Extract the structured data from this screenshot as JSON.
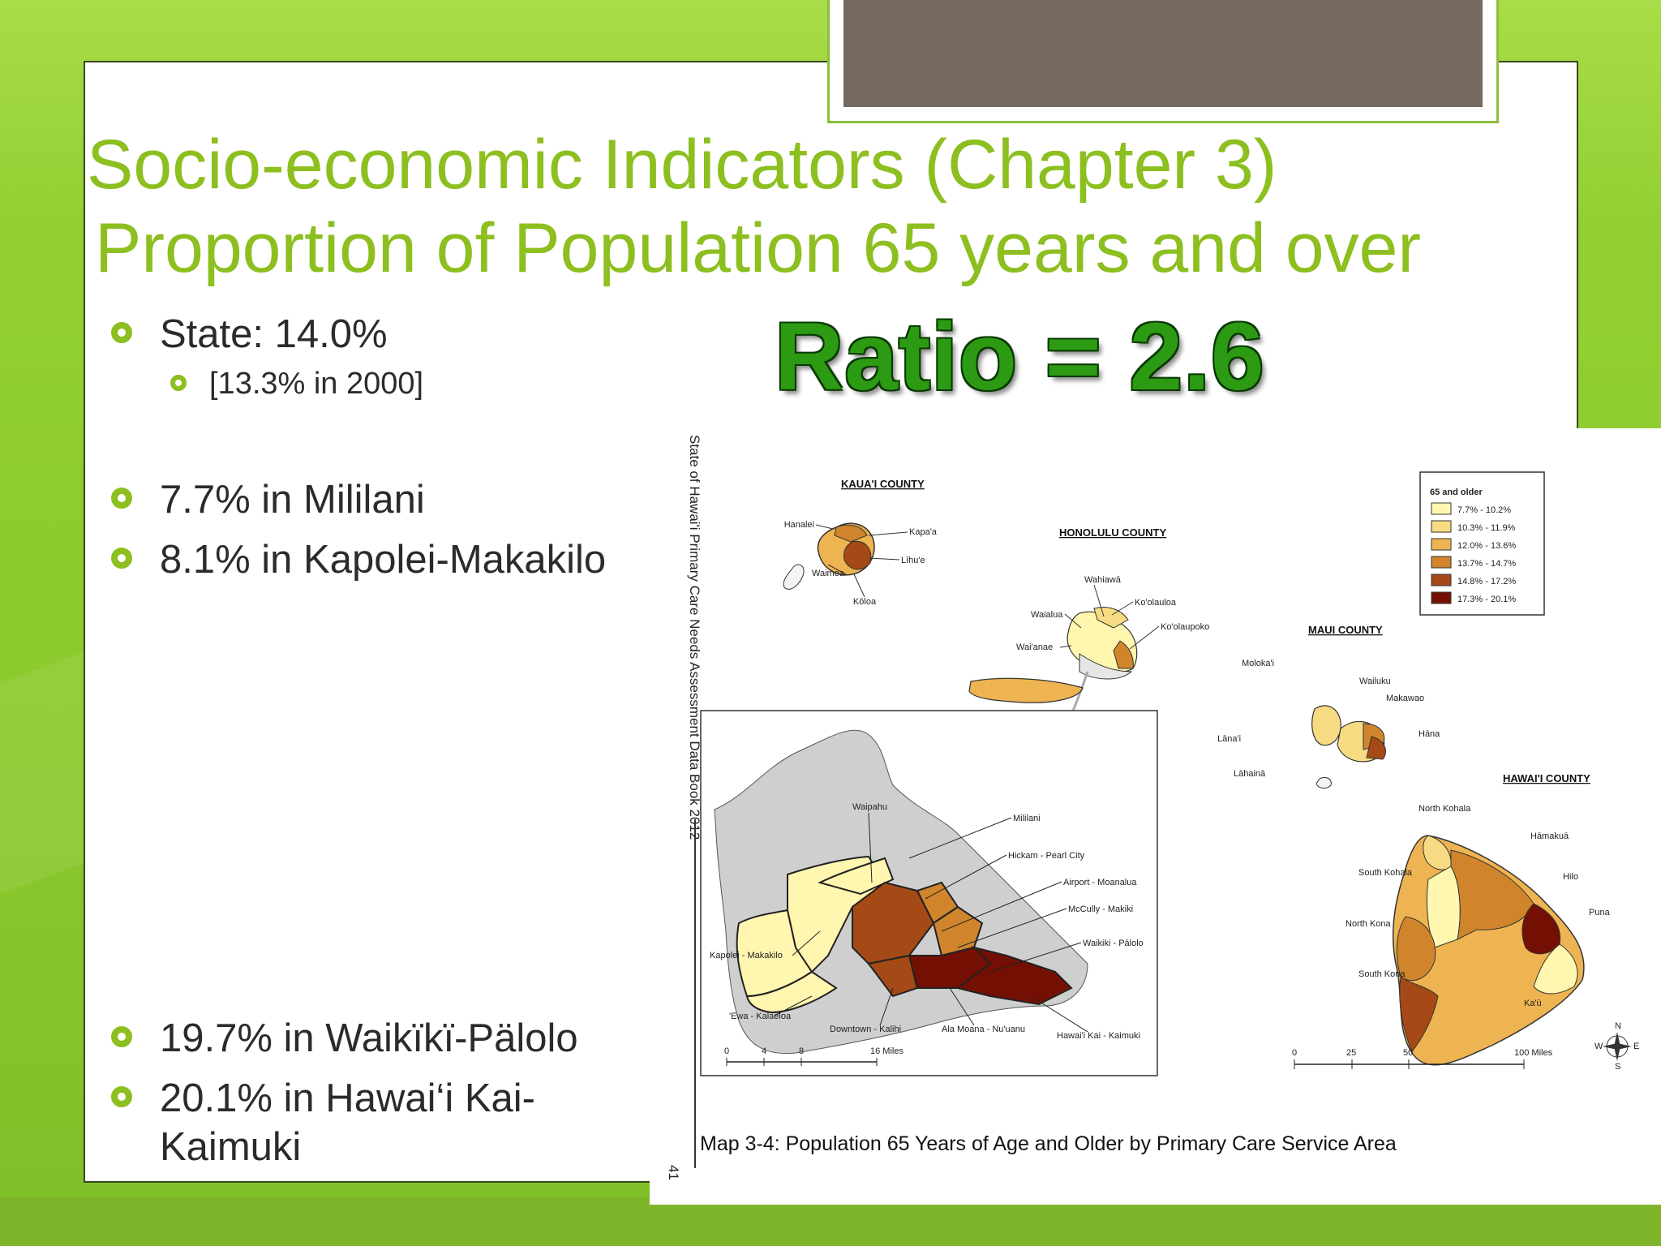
{
  "slide": {
    "title_line1": "Socio-economic Indicators (Chapter 3)",
    "title_line2": "Proportion of Population 65 years and over",
    "ratio": "Ratio = 2.6",
    "bullets": [
      {
        "text": "State: 14.0%",
        "level": 1
      },
      {
        "text": "[13.3% in 2000]",
        "level": 2
      },
      {
        "text": "7.7% in Mililani",
        "level": 1
      },
      {
        "text": "8.1% in Kapolei-Makakilo",
        "level": 1
      },
      {
        "text": "19.7% in Waikïkï-Pälolo",
        "level": 1
      },
      {
        "text": "20.1% in Hawai‘i Kai-",
        "level": 1
      },
      {
        "text": "Kaimuki",
        "level": 1
      }
    ]
  },
  "map": {
    "side_title": "State of Hawai'i Primary Care Needs Assessment Data Book 2012",
    "page_number": "41",
    "caption": "Map 3-4: Population 65 Years of Age and Older by Primary Care Service Area",
    "legend": {
      "title": "65 and older",
      "items": [
        {
          "label": "7.7% - 10.2%",
          "color": "#fff7b0"
        },
        {
          "label": "10.3% - 11.9%",
          "color": "#f7db82"
        },
        {
          "label": "12.0% - 13.6%",
          "color": "#eeb452"
        },
        {
          "label": "13.7% - 14.7%",
          "color": "#d0852c"
        },
        {
          "label": "14.8% - 17.2%",
          "color": "#a54a16"
        },
        {
          "label": "17.3% - 20.1%",
          "color": "#741003"
        }
      ]
    },
    "counties": {
      "kauai": "KAUA'I COUNTY",
      "honolulu": "HONOLULU COUNTY",
      "maui": "MAUI COUNTY",
      "hawaii": "HAWAI'I COUNTY"
    },
    "kauai_labels": [
      "Hanalei",
      "Kapa'a",
      "Līhu'e",
      "Waimea",
      "Kōloa"
    ],
    "oahu_small_labels": [
      "Wahiawā",
      "Ko'olauloa",
      "Waialua",
      "Ko'olaupoko",
      "Wai'anae"
    ],
    "maui_labels": [
      "Moloka'i",
      "Wailuku",
      "Makawao",
      "Hāna",
      "Lāna'i",
      "Lāhainā"
    ],
    "hawaii_labels": [
      "North Kohala",
      "Hāmakuā",
      "South Kohala",
      "Hilo",
      "Puna",
      "North Kona",
      "South Kona",
      "Ka'ū"
    ],
    "inset_labels": [
      "Waipahu",
      "Mililani",
      "Hickam - Pearl City",
      "Airport - Moanalua",
      "McCully - Makiki",
      "Waikiki - Pālolo",
      "Kapolei - Makakilo",
      "'Ewa - Kalaeloa",
      "Downtown - Kalihi",
      "Ala Moana - Nu'uanu",
      "Hawai'i Kai - Kaimuki"
    ],
    "scale_inset": [
      "0",
      "4",
      "8",
      "16 Miles"
    ],
    "scale_main": [
      "0",
      "25",
      "50",
      "100 Miles"
    ],
    "compass": [
      "N",
      "S",
      "E",
      "W"
    ]
  }
}
